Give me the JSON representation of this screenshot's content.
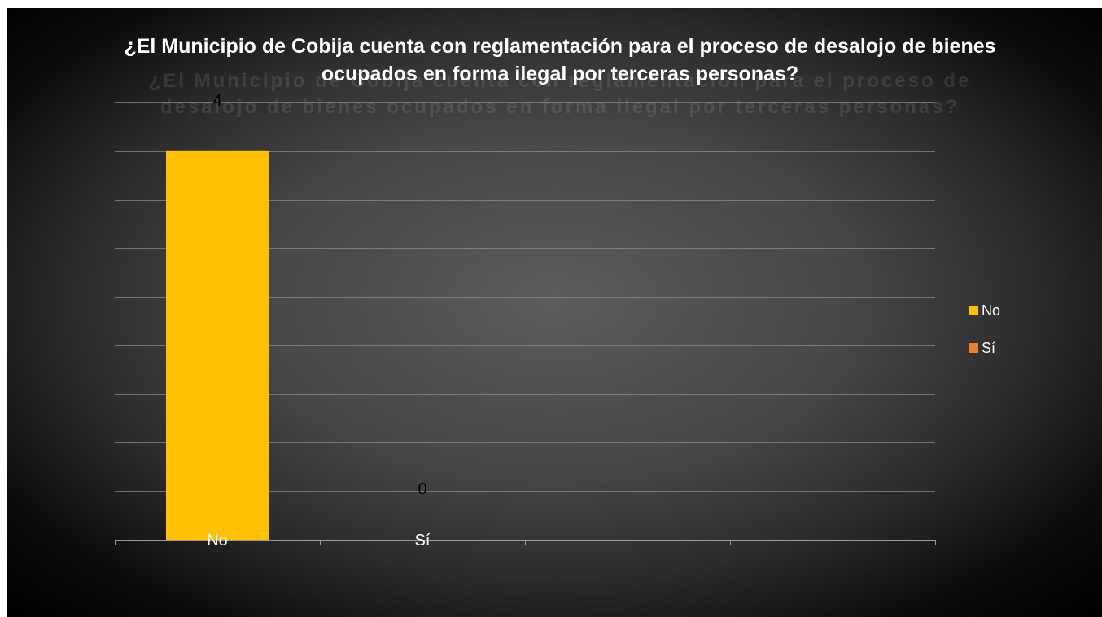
{
  "chart_data": {
    "type": "bar",
    "title": "¿El Municipio de Cobija cuenta con reglamentación para el proceso de desalojo de bienes ocupados en forma ilegal por terceras personas?",
    "ghost_title": "¿El Municipio de Cobija cuenta con reglamentación para el proceso de desalojo de bienes ocupados en forma ilegal por terceras personas?",
    "categories": [
      "No",
      "Sí"
    ],
    "values": [
      4,
      0
    ],
    "data_labels": [
      "4",
      "0"
    ],
    "ylim": [
      0,
      4.5
    ],
    "y_gridline_step": 0.5,
    "grid": true,
    "legend": {
      "position": "right",
      "entries": [
        {
          "name": "No",
          "color": "#FFC000"
        },
        {
          "name": "Sí",
          "color": "#ED7D31"
        }
      ]
    },
    "colors": [
      "#FFC000",
      "#ED7D31"
    ],
    "xlabel": "",
    "ylabel": ""
  }
}
